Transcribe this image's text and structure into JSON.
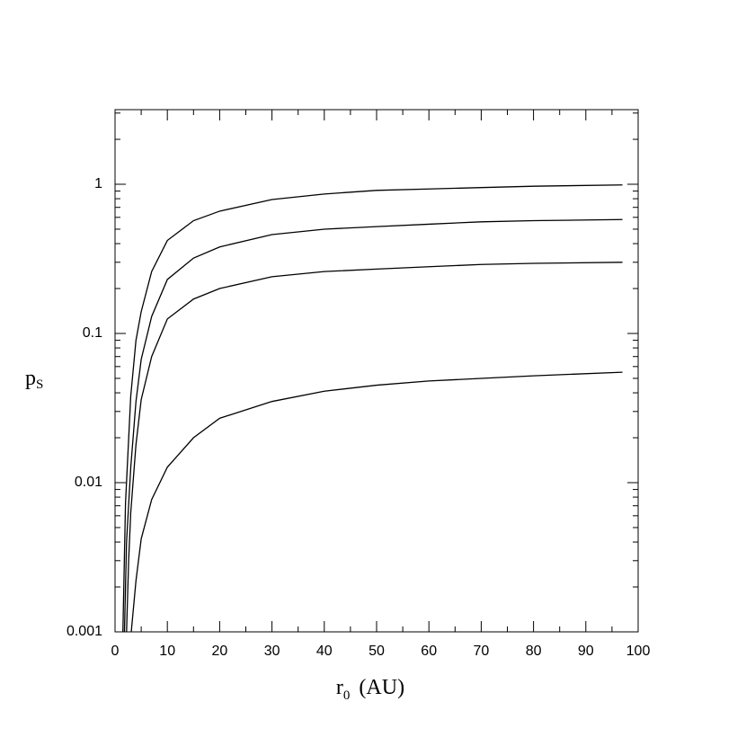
{
  "chart_data": {
    "type": "line",
    "xlabel": {
      "main": "r",
      "sub": "0",
      "rest": "(AU)"
    },
    "ylabel": {
      "main": "p",
      "sub": "S"
    },
    "xlim": [
      0,
      100
    ],
    "xticks": [
      0,
      10,
      20,
      30,
      40,
      50,
      60,
      70,
      80,
      90,
      100
    ],
    "ylim": [
      0.001,
      3.162
    ],
    "yticks": [
      0.001,
      0.01,
      0.1,
      1
    ],
    "ylog": true,
    "color": "#000000",
    "series": [
      {
        "x": [
          1.5,
          2,
          3,
          4,
          5,
          7,
          10,
          15,
          20,
          30,
          40,
          50,
          60,
          70,
          80,
          97
        ],
        "values": [
          0.001,
          0.0073,
          0.038,
          0.09,
          0.14,
          0.26,
          0.42,
          0.57,
          0.66,
          0.79,
          0.86,
          0.91,
          0.93,
          0.95,
          0.97,
          0.99
        ]
      },
      {
        "x": [
          1.8,
          2.2,
          3,
          4,
          5,
          7,
          10,
          15,
          20,
          30,
          40,
          50,
          60,
          70,
          80,
          97
        ],
        "values": [
          0.001,
          0.004,
          0.0126,
          0.035,
          0.067,
          0.13,
          0.23,
          0.32,
          0.38,
          0.46,
          0.5,
          0.52,
          0.54,
          0.56,
          0.57,
          0.58
        ]
      },
      {
        "x": [
          2.2,
          2.6,
          3,
          4,
          5,
          7,
          10,
          15,
          20,
          30,
          40,
          50,
          60,
          70,
          80,
          97
        ],
        "values": [
          0.001,
          0.003,
          0.0063,
          0.018,
          0.036,
          0.07,
          0.125,
          0.17,
          0.2,
          0.24,
          0.26,
          0.27,
          0.28,
          0.29,
          0.295,
          0.3
        ]
      },
      {
        "x": [
          3.1,
          4,
          5,
          7,
          10,
          15,
          20,
          30,
          40,
          50,
          60,
          70,
          80,
          97
        ],
        "values": [
          0.001,
          0.0022,
          0.0042,
          0.0077,
          0.0127,
          0.02,
          0.027,
          0.035,
          0.041,
          0.045,
          0.048,
          0.05,
          0.052,
          0.055
        ]
      }
    ]
  }
}
